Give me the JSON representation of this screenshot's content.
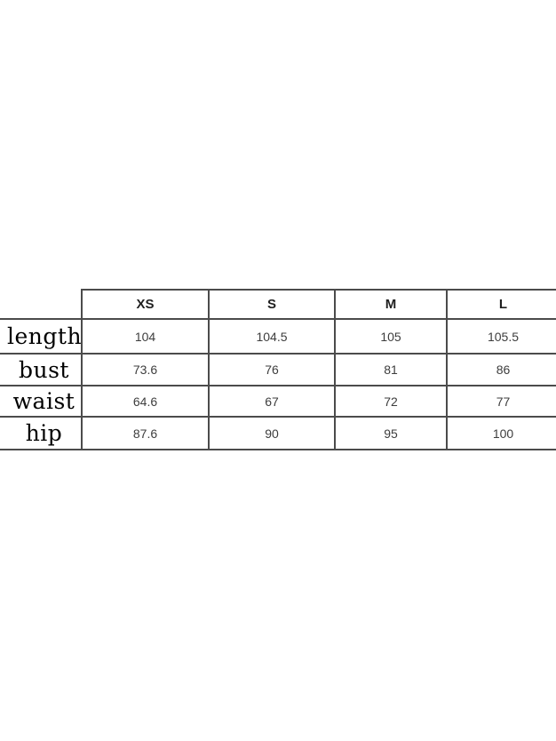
{
  "page": {
    "background_color": "#ffffff",
    "border_color": "#4b4b4b",
    "label_text_color": "#000000",
    "value_text_color": "#3d3d3d"
  },
  "size_chart": {
    "columns": [
      "XS",
      "S",
      "M",
      "L"
    ],
    "rows": [
      {
        "label": "length",
        "values": [
          "104",
          "104.5",
          "105",
          "105.5"
        ]
      },
      {
        "label": "bust",
        "values": [
          "73.6",
          "76",
          "81",
          "86"
        ]
      },
      {
        "label": "waist",
        "values": [
          "64.6",
          "67",
          "72",
          "77"
        ]
      },
      {
        "label": "hip",
        "values": [
          "87.6",
          "90",
          "95",
          "100"
        ]
      }
    ]
  },
  "chart_data": {
    "type": "table",
    "title": "",
    "columns": [
      "",
      "XS",
      "S",
      "M",
      "L"
    ],
    "rows": [
      [
        "length",
        104,
        104.5,
        105,
        105.5
      ],
      [
        "bust",
        73.6,
        76,
        81,
        86
      ],
      [
        "waist",
        64.6,
        67,
        72,
        77
      ],
      [
        "hip",
        87.6,
        90,
        95,
        100
      ]
    ]
  }
}
